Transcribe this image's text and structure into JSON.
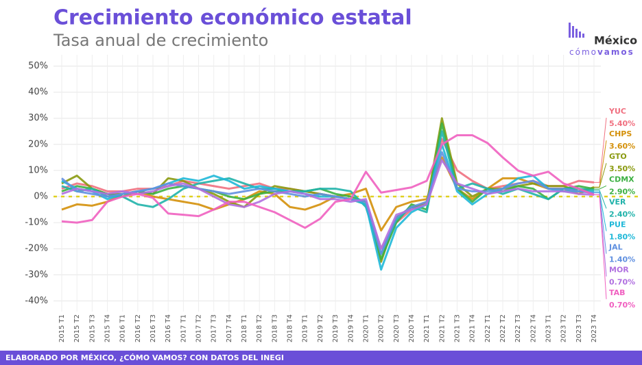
{
  "chart_data": {
    "type": "line",
    "title": "Crecimiento económico estatal",
    "subtitle": "Tasa anual de crecimiento",
    "logo": {
      "name": "México",
      "prefix": "cómo",
      "suffix": "vamos"
    },
    "footer": "ELABORADO POR MÉXICO, ¿CÓMO VAMOS? CON DATOS DEL INEGI",
    "categories": [
      "2015 T1",
      "2015 T2",
      "2015 T3",
      "2015 T4",
      "2016 T1",
      "2016 T2",
      "2016 T3",
      "2016 T4",
      "2017 T1",
      "2017 T2",
      "2017 T3",
      "2017 T4",
      "2018 T1",
      "2018 T2",
      "2018 T3",
      "2018 T4",
      "2019 T1",
      "2019 T2",
      "2019 T3",
      "2019 T4",
      "2020 T1",
      "2020 T2",
      "2020 T3",
      "2020 T4",
      "2021 T1",
      "2021 T2",
      "2021 T3",
      "2021 T4",
      "2022 T1",
      "2022 T2",
      "2022 T3",
      "2022 T4",
      "2023 T1",
      "2023 T2",
      "2023 T3",
      "2023 T4"
    ],
    "ylim": [
      -44,
      52
    ],
    "yticks": [
      {
        "value": -40,
        "label": "-40%"
      },
      {
        "value": -30,
        "label": "-30%"
      },
      {
        "value": -20,
        "label": "-20%"
      },
      {
        "value": -10,
        "label": "-10%"
      },
      {
        "value": 0,
        "label": "0%"
      },
      {
        "value": 10,
        "label": "10%"
      },
      {
        "value": 20,
        "label": "20%"
      },
      {
        "value": 30,
        "label": "30%"
      },
      {
        "value": 40,
        "label": "40%"
      },
      {
        "value": 50,
        "label": "50%"
      }
    ],
    "grid": true,
    "series": [
      {
        "name": "YUC",
        "color": "#f07080",
        "last_label": "5.40%",
        "values": [
          3,
          5,
          4,
          2,
          2,
          3,
          3,
          4,
          6,
          5,
          4,
          3,
          4,
          5,
          3,
          3,
          2,
          1,
          0,
          -1,
          -2,
          -20,
          -10,
          -5,
          -2,
          22,
          10,
          6,
          3,
          4,
          5,
          6,
          4,
          4,
          6,
          5.4
        ]
      },
      {
        "name": "CHPS",
        "color": "#d4900a",
        "last_label": "3.60%",
        "values": [
          -5,
          -3,
          -3.5,
          -2,
          1,
          2,
          0,
          -1,
          -2,
          -3,
          -5,
          -3,
          -1,
          2,
          1,
          -4,
          -5,
          -3,
          0,
          1,
          3,
          -13,
          -4,
          -2,
          -1,
          15,
          3,
          -1,
          3,
          7,
          7,
          5,
          3,
          3,
          1,
          3.6
        ]
      },
      {
        "name": "GTO",
        "color": "#8a9a10",
        "last_label": "3.50%",
        "values": [
          5,
          8,
          3,
          1,
          1,
          2,
          1,
          7,
          6,
          3,
          1,
          -2,
          -4,
          1,
          4,
          3,
          2,
          1,
          0,
          -1,
          -3,
          -25,
          -8,
          -4,
          -3,
          30,
          5,
          0,
          3,
          3,
          4,
          5,
          4,
          4,
          2,
          3.5
        ]
      },
      {
        "name": "CDMX",
        "color": "#3cb043",
        "last_label": "2.90%",
        "values": [
          2,
          4,
          3,
          1,
          0,
          2,
          1,
          3,
          4,
          3,
          2,
          0,
          -1,
          1,
          2,
          2,
          2,
          3,
          1,
          0,
          -2,
          -24,
          -10,
          -3,
          -5,
          28,
          3,
          -2,
          3,
          2,
          4,
          3,
          -1,
          3,
          4,
          2.9
        ]
      },
      {
        "name": "VER",
        "color": "#20b2aa",
        "last_label": "2.40%",
        "values": [
          4,
          2,
          3,
          0,
          0,
          -3,
          -4,
          -1,
          3,
          5,
          6,
          7,
          5,
          3,
          3,
          2,
          2,
          3,
          3,
          2,
          -4,
          -22,
          -9,
          -4,
          -6,
          25,
          3,
          5,
          3,
          1,
          3,
          1,
          -1,
          3,
          3,
          2.4
        ]
      },
      {
        "name": "PUE",
        "color": "#1fb8d8",
        "last_label": "1.80%",
        "values": [
          6,
          3,
          2,
          -1,
          1,
          2,
          3,
          5,
          7,
          6,
          8,
          6,
          3,
          4,
          3,
          2,
          1,
          0,
          0,
          -1,
          -3,
          -28,
          -12,
          -6,
          -3,
          20,
          2,
          -3,
          1,
          3,
          7,
          8,
          3,
          2,
          2,
          1.8
        ]
      },
      {
        "name": "JAL",
        "color": "#6090e0",
        "last_label": "1.40%",
        "values": [
          7,
          2,
          1,
          0,
          1,
          2,
          3,
          5,
          4,
          3,
          2,
          1,
          2,
          3,
          2,
          1,
          0,
          1,
          0,
          -1,
          -2,
          -22,
          -8,
          -4,
          -2,
          17,
          3,
          2,
          2,
          3,
          5,
          6,
          3,
          3,
          2,
          1.4
        ]
      },
      {
        "name": "MOR",
        "color": "#b070e0",
        "last_label": "0.70%",
        "values": [
          1,
          3,
          2,
          1,
          2,
          1,
          2,
          4,
          5,
          3,
          0,
          -3,
          -4,
          -2,
          1,
          2,
          1,
          -1,
          -1,
          -2,
          -1,
          -20,
          -7,
          -5,
          -3,
          14,
          5,
          3,
          1,
          2,
          3,
          2,
          2,
          2,
          1,
          0.7
        ]
      },
      {
        "name": "TAB",
        "color": "#f060c0",
        "last_label": "0.70%",
        "values": [
          -9.5,
          -10,
          -9,
          -2,
          0,
          1,
          -0.5,
          -6.5,
          -7,
          -7.5,
          -5,
          -2,
          -2,
          -4,
          -6,
          -9,
          -12,
          -8.5,
          -2,
          -1,
          9.5,
          1.5,
          2.5,
          3.5,
          6,
          20,
          23.5,
          23.5,
          20.5,
          15,
          10,
          8,
          9.5,
          5,
          3,
          0.7
        ]
      }
    ]
  }
}
